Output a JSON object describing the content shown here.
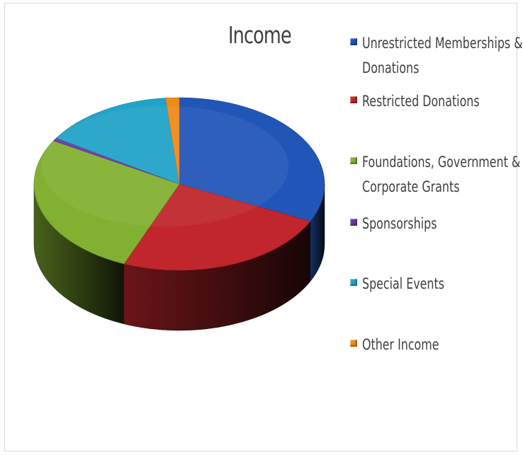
{
  "chart_data": {
    "type": "pie",
    "title": "Income",
    "legend_position": "right",
    "slices": [
      {
        "label": "Unrestricted Memberships & Donations",
        "value": 32,
        "color": "#2155b8"
      },
      {
        "label": "Restricted Donations",
        "value": 24,
        "color": "#c0262b"
      },
      {
        "label": "Foundations, Government & Corporate Grants",
        "value": 27,
        "color": "#82b131"
      },
      {
        "label": "Sponsorships",
        "value": 0.6,
        "color": "#6a37a3"
      },
      {
        "label": "Special Events",
        "value": 14.5,
        "color": "#20a3c8"
      },
      {
        "label": "Other Income",
        "value": 1.5,
        "color": "#f08a1a"
      }
    ]
  }
}
